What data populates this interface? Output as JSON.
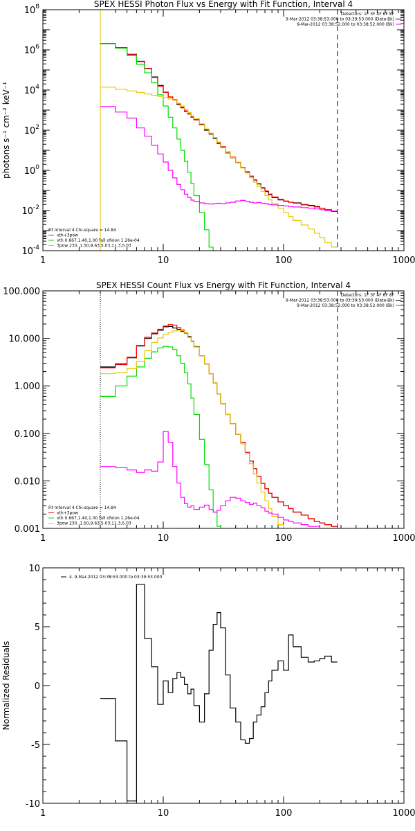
{
  "chart_data": [
    {
      "type": "line",
      "title": "SPEX HESSI Photon Flux vs Energy with Fit Function, Interval 4",
      "ylabel": "photons s⁻¹ cm⁻² keV⁻¹",
      "xlabel": "",
      "xscale": "log",
      "yscale": "log",
      "xlim": [
        1,
        1000
      ],
      "ylim": [
        0.0001,
        100000000
      ],
      "xticks": [
        "1",
        "10",
        "100",
        "1000"
      ],
      "yticks": [
        {
          "base": "10",
          "exp": "-4",
          "value": 0.0001
        },
        {
          "base": "10",
          "exp": "-2",
          "value": 0.01
        },
        {
          "base": "10",
          "exp": "0",
          "value": 1
        },
        {
          "base": "10",
          "exp": "2",
          "value": 100
        },
        {
          "base": "10",
          "exp": "4",
          "value": 10000
        },
        {
          "base": "10",
          "exp": "6",
          "value": 1000000
        },
        {
          "base": "10",
          "exp": "8",
          "value": 100000000
        }
      ],
      "legend_tr": {
        "placement": "top-right",
        "lines": [
          {
            "text": "Detectors: 1F 3F 4F 6F 8F",
            "color": "#000000",
            "swatch": false
          },
          {
            "text": "9-Mar-2012 03:38:53.000 to 03:39:53.000 (Data-Bk)",
            "color": "#000000",
            "swatch": true
          },
          {
            "text": "9-Mar-2012 03:38:52.000 to 03:38:52.000 (Bk)",
            "color": "#ff00ff",
            "swatch": true
          }
        ]
      },
      "legend_bl": {
        "placement": "bottom-left",
        "lines": [
          {
            "text": "Fit Interval  4    Chi-square = 14.84",
            "color": "#000000",
            "swatch": false
          },
          {
            "text": "vth+3pow",
            "color": "#ff0000",
            "swatch": true
          },
          {
            "text": "vth 0.667,1.40,1.00  full ofxion 1.26e-04",
            "color": "#00dd00",
            "swatch": true
          },
          {
            "text": "3pow 230.,1.50,9.63,5.03,11.3,5.03",
            "color": "#e6c800",
            "swatch": true
          }
        ]
      },
      "vlines": [
        {
          "x": 3,
          "color": "#e6c800",
          "style": "solid"
        },
        {
          "x": 280,
          "color": "#000000",
          "style": "dashed"
        }
      ],
      "x_edges": [
        3,
        4,
        5,
        6,
        7,
        8,
        9,
        10,
        11,
        12,
        13,
        14,
        15,
        16,
        17,
        18,
        20,
        22,
        24,
        26,
        28,
        30,
        33,
        36,
        40,
        44,
        48,
        52,
        56,
        60,
        65,
        70,
        75,
        80,
        90,
        100,
        110,
        120,
        140,
        160,
        180,
        200,
        220,
        250,
        280
      ],
      "series": [
        {
          "name": "Data-Bk",
          "color": "#000000",
          "values": [
            2000000,
            1300000,
            600000,
            270000,
            120000,
            45000,
            17000,
            7800,
            4500,
            3200,
            1900,
            1300,
            860,
            640,
            440,
            330,
            190,
            100,
            64,
            38,
            22,
            13.5,
            7.4,
            4.2,
            2.4,
            1.35,
            0.82,
            0.5,
            0.33,
            0.21,
            0.13,
            0.088,
            0.062,
            0.044,
            0.034,
            0.029,
            0.026,
            0.024,
            0.02,
            0.018,
            0.016,
            0.013,
            0.011,
            0.009
          ]
        },
        {
          "name": "vth+3pow",
          "color": "#ff0000",
          "values": [
            2100000,
            1300000,
            580000,
            260000,
            115000,
            42000,
            15500,
            7600,
            4600,
            3300,
            2050,
            1400,
            920,
            660,
            460,
            340,
            200,
            110,
            70,
            42,
            25,
            15,
            8.2,
            4.6,
            2.5,
            1.4,
            0.85,
            0.52,
            0.34,
            0.22,
            0.14,
            0.094,
            0.066,
            0.047,
            0.036,
            0.03,
            0.026,
            0.023,
            0.019,
            0.017,
            0.015,
            0.013,
            0.011,
            0.0095
          ]
        },
        {
          "name": "vth",
          "color": "#00dd00",
          "values": [
            2000000,
            1200000,
            520000,
            190000,
            72000,
            23000,
            5800,
            1600,
            440,
            130,
            36,
            10,
            2.8,
            0.8,
            0.22,
            0.055,
            0.008,
            0.0011,
            0.00015,
            2e-05
          ]
        },
        {
          "name": "3pow",
          "color": "#e6c800",
          "values": [
            14000,
            11000,
            9000,
            7600,
            6400,
            5500,
            4800,
            4200,
            3600,
            3100,
            2200,
            1600,
            1100,
            760,
            520,
            370,
            210,
            115,
            70,
            42,
            24,
            14,
            7.8,
            4.3,
            2.4,
            1.3,
            0.74,
            0.43,
            0.26,
            0.16,
            0.09,
            0.055,
            0.034,
            0.022,
            0.013,
            0.008,
            0.005,
            0.0032,
            0.0019,
            0.0012,
            0.00075,
            0.00045,
            0.00025,
            0.00015
          ]
        },
        {
          "name": "Bk",
          "color": "#ff00ff",
          "values": [
            1500,
            800,
            400,
            130,
            50,
            18,
            6.5,
            2.6,
            1.0,
            0.42,
            0.2,
            0.11,
            0.065,
            0.045,
            0.033,
            0.028,
            0.024,
            0.022,
            0.021,
            0.022,
            0.023,
            0.022,
            0.024,
            0.026,
            0.03,
            0.032,
            0.029,
            0.026,
            0.024,
            0.025,
            0.023,
            0.022,
            0.02,
            0.019,
            0.018,
            0.017,
            0.016,
            0.015,
            0.014,
            0.013,
            0.012,
            0.011,
            0.01,
            0.0095
          ]
        }
      ]
    },
    {
      "type": "line",
      "title": "SPEX HESSI Count Flux vs Energy with Fit Function, Interval 4",
      "ylabel": "",
      "xlabel": "",
      "xscale": "log",
      "yscale": "log",
      "xlim": [
        1,
        1000
      ],
      "ylim": [
        0.001,
        100
      ],
      "xticks": [
        "1",
        "10",
        "100",
        "1000"
      ],
      "yticks": [
        {
          "label": "100.000",
          "value": 100
        },
        {
          "label": "10.000",
          "value": 10
        },
        {
          "label": "1.000",
          "value": 1
        },
        {
          "label": "0.100",
          "value": 0.1
        },
        {
          "label": "0.010",
          "value": 0.01
        },
        {
          "label": "0.001",
          "value": 0.001
        }
      ],
      "legend_tr": {
        "placement": "top-right",
        "lines": [
          {
            "text": "Detectors: 1F 3F 4F 6F 8F",
            "color": "#000000",
            "swatch": false
          },
          {
            "text": "9-Mar-2012 03:38:53.000 to 03:39:53.000 (Data-Bk)",
            "color": "#000000",
            "swatch": true
          },
          {
            "text": "9-Mar-2012 03:38:52.000 to 03:38:52.000 (Bk)",
            "color": "#ff00ff",
            "swatch": true
          }
        ]
      },
      "legend_bl": {
        "placement": "bottom-left",
        "lines": [
          {
            "text": "Fit Interval  4    Chi-square = 14.84",
            "color": "#000000",
            "swatch": false
          },
          {
            "text": "vth+3pow",
            "color": "#ff0000",
            "swatch": true
          },
          {
            "text": "vth 0.667,1.40,1.00  full ofxion 1.26e-04",
            "color": "#00dd00",
            "swatch": true
          },
          {
            "text": "3pow 230.,1.50,9.63,5.03,11.3,5.03",
            "color": "#e6c800",
            "swatch": true
          }
        ]
      },
      "vlines": [
        {
          "x": 3,
          "color": "#000000",
          "style": "dotted"
        },
        {
          "x": 280,
          "color": "#000000",
          "style": "dashed"
        }
      ],
      "x_edges": [
        3,
        4,
        5,
        6,
        7,
        8,
        9,
        10,
        11,
        12,
        13,
        14,
        15,
        16,
        17,
        18,
        20,
        22,
        24,
        26,
        28,
        30,
        33,
        36,
        40,
        44,
        48,
        52,
        56,
        60,
        65,
        70,
        75,
        80,
        90,
        100,
        110,
        120,
        140,
        160,
        180,
        200,
        220,
        250,
        280
      ],
      "series": [
        {
          "name": "Data-Bk",
          "color": "#000000",
          "values": [
            2.5,
            2.9,
            3.9,
            6.9,
            10.0,
            12.5,
            14.8,
            17.5,
            17.8,
            16.5,
            15.5,
            14.0,
            13.0,
            11.0,
            8.7,
            6.7,
            4.3,
            2.9,
            1.8,
            1.15,
            0.68,
            0.42,
            0.25,
            0.16,
            0.095,
            0.065,
            0.04,
            0.026,
            0.018,
            0.0125,
            0.0088,
            0.0068,
            0.0055,
            0.0045,
            0.0036,
            0.003,
            0.0026,
            0.0022,
            0.0019,
            0.0016,
            0.0014,
            0.0013,
            0.0012,
            0.0011
          ]
        },
        {
          "name": "vth+3pow",
          "color": "#ff0000",
          "values": [
            2.4,
            2.8,
            4.0,
            7.1,
            10.5,
            13.0,
            15.5,
            18.2,
            19.5,
            19.0,
            17.0,
            15.0,
            12.8,
            10.5,
            8.5,
            6.6,
            4.3,
            2.9,
            1.8,
            1.15,
            0.68,
            0.42,
            0.25,
            0.16,
            0.095,
            0.065,
            0.04,
            0.026,
            0.018,
            0.0125,
            0.0088,
            0.0068,
            0.0055,
            0.0045,
            0.0036,
            0.003,
            0.0026,
            0.0022,
            0.0019,
            0.0016,
            0.0014,
            0.0013,
            0.0012,
            0.0011
          ]
        },
        {
          "name": "vth",
          "color": "#00dd00",
          "values": [
            0.6,
            1.0,
            1.6,
            2.5,
            3.8,
            5.2,
            6.3,
            6.8,
            6.6,
            5.8,
            4.3,
            3.0,
            1.9,
            1.1,
            0.55,
            0.25,
            0.075,
            0.022,
            0.0065,
            0.0022,
            0.0011,
            0.0008
          ]
        },
        {
          "name": "3pow",
          "color": "#e6c800",
          "values": [
            1.8,
            1.9,
            2.3,
            3.3,
            5.5,
            8.2,
            10.2,
            12.2,
            13.5,
            14.3,
            14.8,
            14.4,
            13.2,
            10.5,
            8.5,
            6.6,
            4.3,
            2.9,
            1.8,
            1.15,
            0.68,
            0.42,
            0.25,
            0.16,
            0.095,
            0.06,
            0.037,
            0.023,
            0.014,
            0.009,
            0.0058,
            0.0038,
            0.0026,
            0.0018,
            0.0012,
            0.0008
          ]
        },
        {
          "name": "Bk",
          "color": "#ff00ff",
          "values": [
            0.02,
            0.019,
            0.017,
            0.015,
            0.017,
            0.016,
            0.025,
            0.11,
            0.065,
            0.02,
            0.009,
            0.0045,
            0.0033,
            0.0028,
            0.003,
            0.0025,
            0.0028,
            0.0031,
            0.0025,
            0.0022,
            0.0024,
            0.003,
            0.0038,
            0.0045,
            0.0043,
            0.0038,
            0.0035,
            0.0032,
            0.0034,
            0.003,
            0.0027,
            0.0023,
            0.0021,
            0.002,
            0.0017,
            0.0015,
            0.0014,
            0.0013,
            0.0012,
            0.0011,
            0.0011,
            0.001,
            0.001,
            0.001
          ]
        }
      ]
    },
    {
      "type": "line",
      "title": "",
      "ylabel": "Normalized Residuals",
      "xlabel": "",
      "xscale": "log",
      "yscale": "linear",
      "xlim": [
        1,
        1000
      ],
      "ylim": [
        -10,
        10
      ],
      "xticks": [
        "1",
        "10",
        "100",
        "1000"
      ],
      "yticks": [
        {
          "label": "10",
          "value": 10
        },
        {
          "label": "5",
          "value": 5
        },
        {
          "label": "0",
          "value": 0
        },
        {
          "label": "-5",
          "value": -5
        },
        {
          "label": "-10",
          "value": -10
        }
      ],
      "legend_tl": {
        "placement": "top-left",
        "lines": [
          {
            "text": "4.  9-Mar-2012 03:38:53.000 to 03:39:53.000",
            "color": "#000000",
            "swatch": true
          }
        ]
      },
      "x_edges": [
        3,
        4,
        5,
        6,
        7,
        8,
        9,
        10,
        11,
        12,
        13,
        14,
        15,
        16,
        17,
        18,
        20,
        22,
        24,
        26,
        28,
        30,
        33,
        36,
        40,
        44,
        48,
        52,
        56,
        60,
        65,
        70,
        75,
        80,
        90,
        100,
        110,
        120,
        140,
        160,
        180,
        200,
        220,
        250,
        280
      ],
      "series": [
        {
          "name": "residuals",
          "color": "#000000",
          "values": [
            -1.1,
            -4.7,
            -9.8,
            8.6,
            4.0,
            1.6,
            -1.6,
            0.4,
            -0.6,
            0.6,
            1.1,
            0.7,
            0.1,
            -0.7,
            -0.3,
            -1.7,
            -3.1,
            -0.7,
            3.0,
            5.2,
            6.2,
            4.9,
            0.9,
            -1.9,
            -3.1,
            -4.6,
            -4.9,
            -4.5,
            -3.1,
            -2.5,
            -1.8,
            -0.6,
            0.4,
            1.3,
            2.1,
            1.3,
            4.3,
            3.3,
            2.4,
            2.0,
            2.1,
            2.3,
            2.5,
            2.0
          ]
        }
      ]
    }
  ]
}
